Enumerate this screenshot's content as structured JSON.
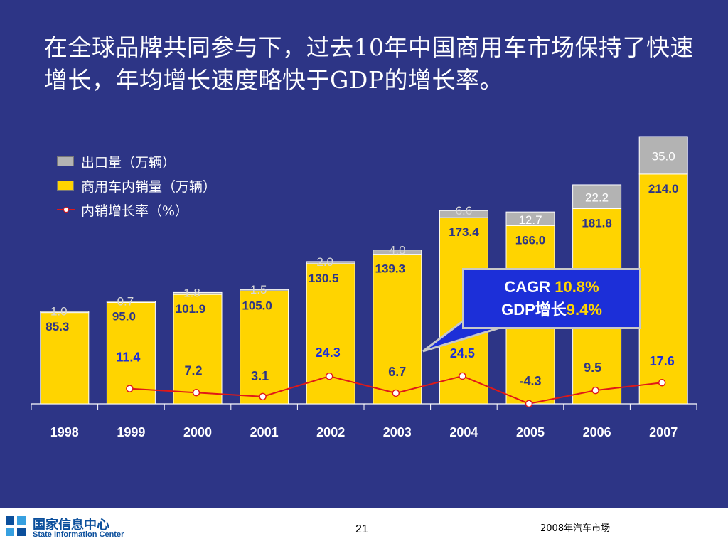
{
  "title": "在全球品牌共同参与下，过去10年中国商用车市场保持了快速增长，年均增长速度略快于GDP的增长率。",
  "legend": {
    "export": "出口量（万辆）",
    "domestic": "商用车内销量（万辆）",
    "growth": "内销增长率（%）"
  },
  "callout": {
    "cagr_label": "CAGR ",
    "cagr_value": "10.8%",
    "gdp_label": "GDP增长",
    "gdp_value": "9.4%"
  },
  "footer": {
    "org_cn": "国家信息中心",
    "org_en": "State Information Center",
    "page": "21",
    "note": "2008年汽车市场"
  },
  "colors": {
    "background": "#2d3586",
    "domestic_bar": "#ffd400",
    "export_bar": "#b3b3b3",
    "growth_line": "#e01818"
  },
  "chart_data": {
    "type": "bar",
    "stacked": true,
    "categories": [
      "1998",
      "1999",
      "2000",
      "2001",
      "2002",
      "2003",
      "2004",
      "2005",
      "2006",
      "2007"
    ],
    "series": [
      {
        "name": "商用车内销量（万辆）",
        "values": [
          85.3,
          95.0,
          101.9,
          105.0,
          130.5,
          139.3,
          173.4,
          166.0,
          181.8,
          214.0
        ]
      },
      {
        "name": "出口量（万辆）",
        "values": [
          1.0,
          0.7,
          1.8,
          1.5,
          2.0,
          4.0,
          6.6,
          12.7,
          22.2,
          35.0
        ]
      }
    ],
    "line_series": {
      "name": "内销增长率（%）",
      "values": [
        11.4,
        7.2,
        3.1,
        24.3,
        6.7,
        24.5,
        -4.3,
        9.5,
        17.6
      ]
    },
    "domestic_labels": [
      "85.3",
      "95.0",
      "101.9",
      "105.0",
      "130.5",
      "139.3",
      "173.4",
      "166.0",
      "181.8",
      "214.0"
    ],
    "export_labels": [
      "1.0",
      "0.7",
      "1.8",
      "1.5",
      "2.0",
      "4.0",
      "6.6",
      "12.7",
      "22.2",
      "35.0"
    ],
    "growth_labels": [
      "11.4",
      "7.2",
      "3.1",
      "24.3",
      "6.7",
      "24.5",
      "-4.3",
      "9.5",
      "17.6"
    ]
  }
}
